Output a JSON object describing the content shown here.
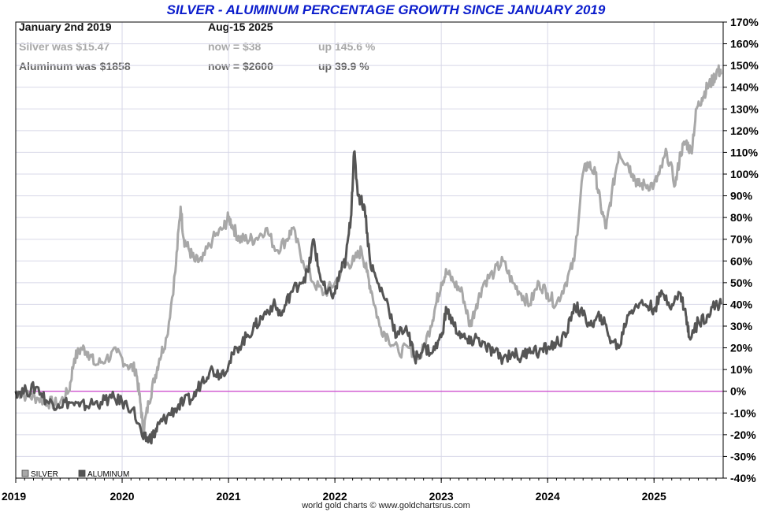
{
  "chart_data": {
    "type": "line",
    "title": "SILVER - ALUMINUM PERCENTAGE GROWTH SINCE JANUARY 2019",
    "info": {
      "start_date": "January 2nd 2019",
      "end_date": "Aug-15  2025",
      "silver_was": "Silver was $15.47",
      "silver_now": "now = $38",
      "silver_up": "up 145.6 %",
      "aluminum_was": "Aluminum was $1858",
      "aluminum_now": "now = $2600",
      "aluminum_up": "up 39.9 %"
    },
    "x_tick_labels": [
      "2019",
      "2020",
      "2021",
      "2022",
      "2023",
      "2024",
      "2025"
    ],
    "x_ticks": [
      2019,
      2020,
      2021,
      2022,
      2023,
      2024,
      2025
    ],
    "xlim": [
      2019.0,
      2025.65
    ],
    "y_tick_labels": [
      "170%",
      "160%",
      "150%",
      "140%",
      "130%",
      "120%",
      "110%",
      "100%",
      "90%",
      "80%",
      "70%",
      "60%",
      "50%",
      "40%",
      "30%",
      "20%",
      "10%",
      "0%",
      "-10%",
      "-20%",
      "-30%",
      "-40%"
    ],
    "y_ticks": [
      170,
      160,
      150,
      140,
      130,
      120,
      110,
      100,
      90,
      80,
      70,
      60,
      50,
      40,
      30,
      20,
      10,
      0,
      -10,
      -20,
      -30,
      -40
    ],
    "ylim": [
      -40,
      170
    ],
    "grid": true,
    "legend_position": "bottom-left",
    "zero_line_color": "#cc44cc",
    "credit": "world gold charts © www.goldchartsrus.com",
    "series": [
      {
        "name": "SILVER",
        "color": "#a8a8a8",
        "x": [
          2019.0,
          2019.1,
          2019.2,
          2019.3,
          2019.4,
          2019.5,
          2019.55,
          2019.62,
          2019.68,
          2019.75,
          2019.85,
          2019.95,
          2020.05,
          2020.13,
          2020.17,
          2020.2,
          2020.25,
          2020.3,
          2020.35,
          2020.42,
          2020.5,
          2020.55,
          2020.58,
          2020.63,
          2020.68,
          2020.75,
          2020.85,
          2020.95,
          2021.0,
          2021.05,
          2021.1,
          2021.17,
          2021.25,
          2021.35,
          2021.45,
          2021.55,
          2021.6,
          2021.7,
          2021.8,
          2021.9,
          2022.0,
          2022.1,
          2022.18,
          2022.25,
          2022.3,
          2022.35,
          2022.42,
          2022.5,
          2022.6,
          2022.7,
          2022.8,
          2022.9,
          2022.95,
          2023.0,
          2023.05,
          2023.12,
          2023.2,
          2023.27,
          2023.33,
          2023.4,
          2023.5,
          2023.58,
          2023.67,
          2023.75,
          2023.83,
          2023.92,
          2024.0,
          2024.08,
          2024.17,
          2024.25,
          2024.33,
          2024.38,
          2024.45,
          2024.5,
          2024.55,
          2024.6,
          2024.67,
          2024.75,
          2024.8,
          2024.85,
          2024.92,
          2025.0,
          2025.05,
          2025.12,
          2025.2,
          2025.25,
          2025.3,
          2025.35,
          2025.4,
          2025.45,
          2025.5,
          2025.55,
          2025.6,
          2025.63
        ],
        "values": [
          0,
          -2,
          -3,
          -5,
          -6,
          0,
          15,
          20,
          18,
          12,
          15,
          18,
          12,
          10,
          -5,
          -18,
          -5,
          5,
          15,
          25,
          55,
          85,
          70,
          65,
          60,
          60,
          70,
          75,
          80,
          75,
          70,
          70,
          70,
          75,
          65,
          70,
          75,
          60,
          50,
          45,
          50,
          58,
          60,
          65,
          55,
          45,
          30,
          25,
          18,
          20,
          15,
          30,
          40,
          50,
          55,
          50,
          45,
          30,
          40,
          50,
          55,
          60,
          50,
          45,
          40,
          50,
          45,
          40,
          50,
          60,
          100,
          105,
          100,
          85,
          75,
          90,
          110,
          105,
          100,
          95,
          95,
          95,
          100,
          110,
          95,
          110,
          115,
          110,
          130,
          135,
          140,
          143,
          148,
          146
        ]
      },
      {
        "name": "ALUMINUM",
        "color": "#555555",
        "x": [
          2019.0,
          2019.1,
          2019.2,
          2019.3,
          2019.4,
          2019.5,
          2019.6,
          2019.7,
          2019.8,
          2019.9,
          2020.0,
          2020.1,
          2020.2,
          2020.25,
          2020.3,
          2020.35,
          2020.42,
          2020.5,
          2020.58,
          2020.67,
          2020.75,
          2020.83,
          2020.92,
          2021.0,
          2021.08,
          2021.17,
          2021.25,
          2021.33,
          2021.42,
          2021.5,
          2021.58,
          2021.67,
          2021.75,
          2021.8,
          2021.85,
          2021.92,
          2022.0,
          2022.05,
          2022.1,
          2022.15,
          2022.18,
          2022.22,
          2022.28,
          2022.33,
          2022.4,
          2022.5,
          2022.58,
          2022.67,
          2022.75,
          2022.83,
          2022.92,
          2023.0,
          2023.05,
          2023.12,
          2023.2,
          2023.27,
          2023.33,
          2023.42,
          2023.5,
          2023.58,
          2023.67,
          2023.75,
          2023.83,
          2023.92,
          2024.0,
          2024.08,
          2024.17,
          2024.25,
          2024.33,
          2024.42,
          2024.5,
          2024.58,
          2024.67,
          2024.75,
          2024.83,
          2024.92,
          2025.0,
          2025.08,
          2025.17,
          2025.25,
          2025.3,
          2025.33,
          2025.42,
          2025.5,
          2025.58,
          2025.63
        ],
        "values": [
          0,
          0,
          2,
          -5,
          -6,
          -5,
          -7,
          -6,
          -5,
          -3,
          -5,
          -8,
          -22,
          -22,
          -20,
          -15,
          -12,
          -8,
          -5,
          -3,
          5,
          10,
          8,
          12,
          20,
          25,
          30,
          35,
          40,
          35,
          45,
          50,
          55,
          70,
          55,
          45,
          45,
          55,
          60,
          80,
          110,
          90,
          85,
          60,
          50,
          40,
          25,
          30,
          15,
          20,
          18,
          25,
          38,
          30,
          25,
          22,
          25,
          20,
          18,
          15,
          18,
          15,
          20,
          18,
          20,
          22,
          25,
          40,
          35,
          30,
          35,
          25,
          20,
          35,
          40,
          40,
          38,
          45,
          40,
          45,
          35,
          25,
          32,
          35,
          40,
          40
        ]
      }
    ]
  }
}
